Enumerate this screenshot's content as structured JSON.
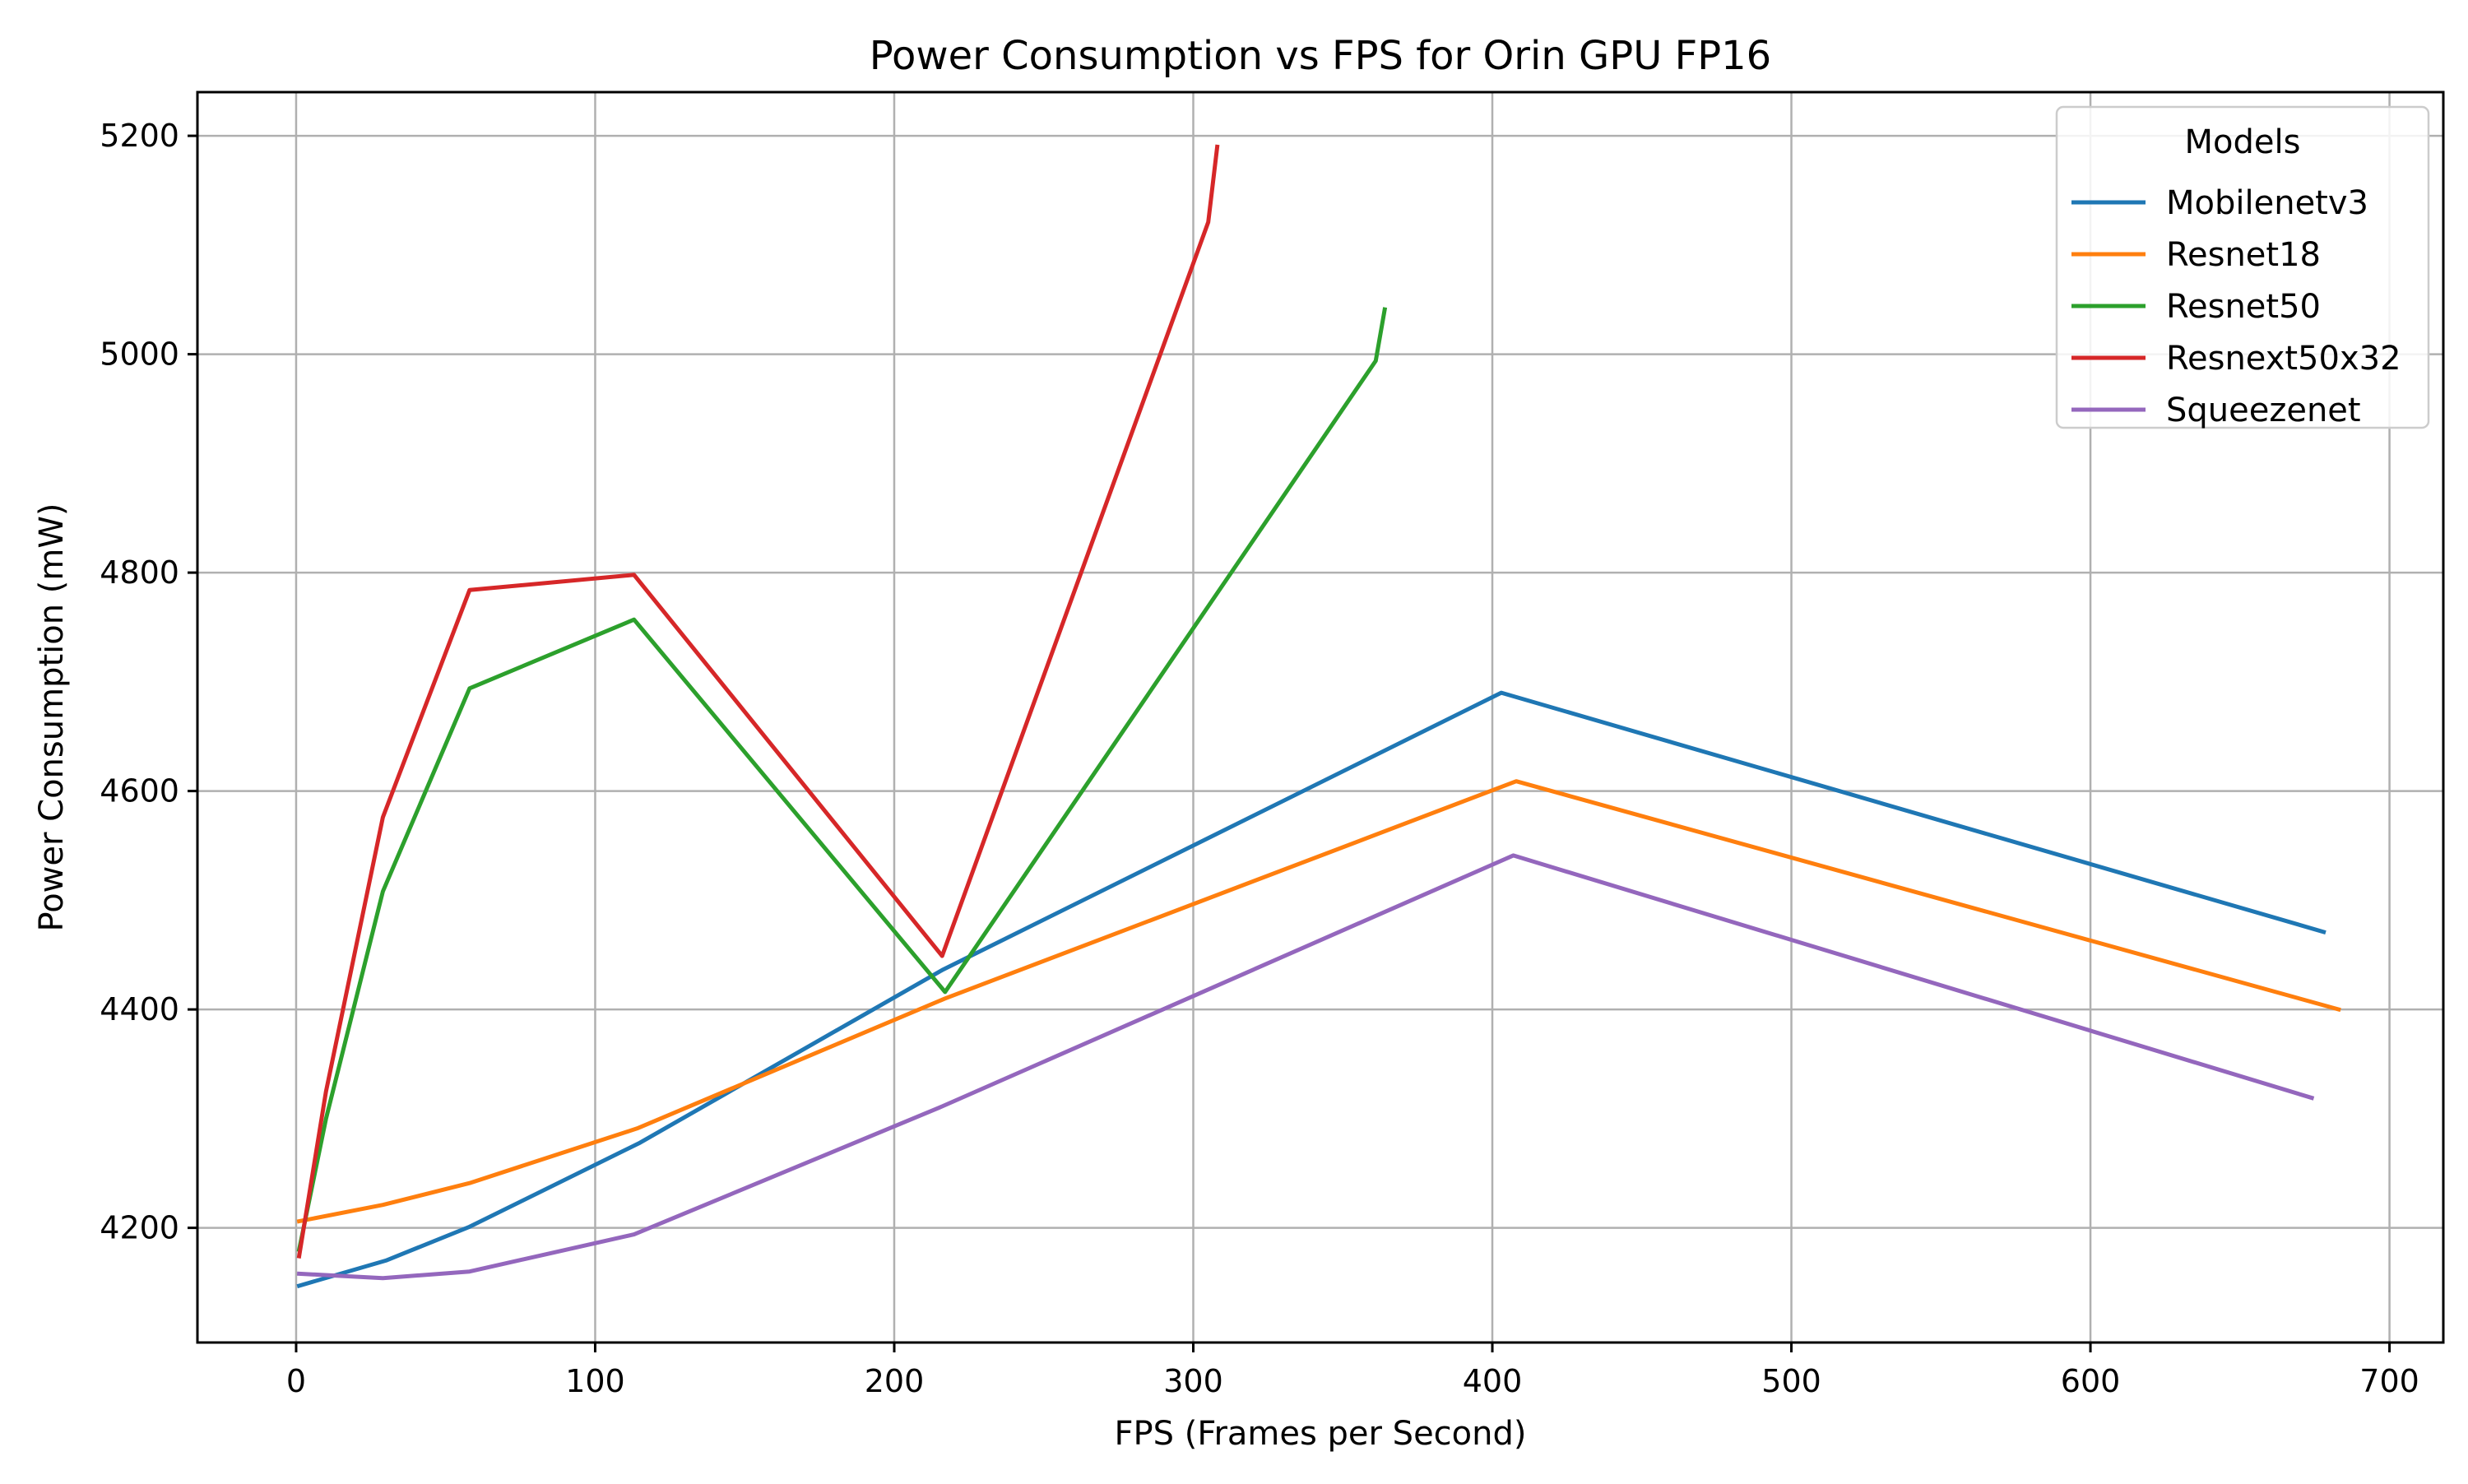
{
  "chart_data": {
    "type": "line",
    "title": "Power Consumption vs FPS for Orin GPU FP16",
    "xlabel": "FPS (Frames per Second)",
    "ylabel": "Power Consumption (mW)",
    "xlim": [
      -33,
      718
    ],
    "ylim": [
      4095,
      5240
    ],
    "xticks": [
      0,
      100,
      200,
      300,
      400,
      500,
      600,
      700
    ],
    "yticks": [
      4200,
      4400,
      4600,
      4800,
      5000,
      5200
    ],
    "grid": true,
    "legend": {
      "title": "Models",
      "placement": "top-right"
    },
    "series": [
      {
        "name": "Mobilenetv3",
        "color": "#1f77b4",
        "points": [
          [
            1,
            4147
          ],
          [
            30,
            4170
          ],
          [
            58,
            4201
          ],
          [
            115,
            4278
          ],
          [
            216,
            4436
          ],
          [
            403,
            4690
          ],
          [
            678,
            4471
          ]
        ]
      },
      {
        "name": "Resnet18",
        "color": "#ff7f0e",
        "points": [
          [
            1,
            4206
          ],
          [
            29,
            4221
          ],
          [
            58,
            4241
          ],
          [
            114,
            4291
          ],
          [
            217,
            4410
          ],
          [
            408,
            4609
          ],
          [
            683,
            4400
          ]
        ]
      },
      {
        "name": "Resnet50",
        "color": "#2ca02c",
        "points": [
          [
            1,
            4180
          ],
          [
            10,
            4300
          ],
          [
            29,
            4508
          ],
          [
            58,
            4694
          ],
          [
            113,
            4757
          ],
          [
            217,
            4416
          ],
          [
            361,
            4994
          ],
          [
            364,
            5041
          ]
        ]
      },
      {
        "name": "Resnext50x32",
        "color": "#d62728",
        "points": [
          [
            1,
            4174
          ],
          [
            10,
            4325
          ],
          [
            29,
            4576
          ],
          [
            58,
            4784
          ],
          [
            113,
            4798
          ],
          [
            216,
            4449
          ],
          [
            305,
            5121
          ],
          [
            308,
            5190
          ]
        ]
      },
      {
        "name": "Squeezenet",
        "color": "#9467bd",
        "points": [
          [
            1,
            4158
          ],
          [
            29,
            4154
          ],
          [
            58,
            4160
          ],
          [
            113,
            4194
          ],
          [
            215,
            4310
          ],
          [
            407,
            4541
          ],
          [
            674,
            4319
          ]
        ]
      }
    ]
  }
}
